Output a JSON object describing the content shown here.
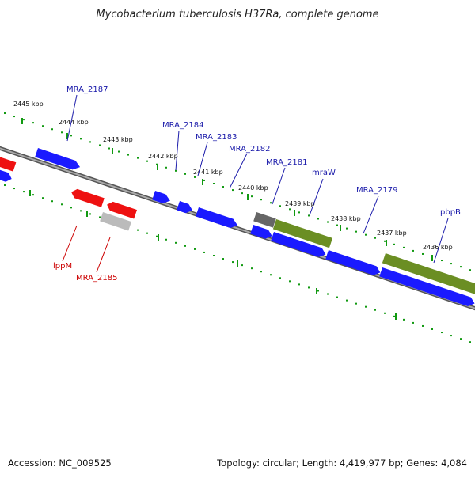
{
  "title": "Mycobacterium tuberculosis H37Ra, complete genome",
  "footer": {
    "accession": "Accession: NC_009525",
    "summary": "Topology: circular; Length: 4,419,977 bp; Genes: 4,084"
  },
  "colors": {
    "forward": "#1a1aff",
    "reverse": "#ee1111",
    "rna": "#6b8e23",
    "pseudo": "#bbbbbb",
    "other": "#666666",
    "ruler": "#119911",
    "forward_label": "#1a1aaa",
    "reverse_label": "#cc0000"
  },
  "ticks": [
    {
      "label": "2445 kbp",
      "kbp": 2445
    },
    {
      "label": "2444 kbp",
      "kbp": 2444
    },
    {
      "label": "2443 kbp",
      "kbp": 2443
    },
    {
      "label": "2442 kbp",
      "kbp": 2442
    },
    {
      "label": "2441 kbp",
      "kbp": 2441
    },
    {
      "label": "2440 kbp",
      "kbp": 2440
    },
    {
      "label": "2439 kbp",
      "kbp": 2439
    },
    {
      "label": "2438 kbp",
      "kbp": 2438
    },
    {
      "label": "2437 kbp",
      "kbp": 2437
    },
    {
      "label": "2436 kbp",
      "kbp": 2436
    }
  ],
  "gene_labels": [
    {
      "name": "MRA_2187",
      "strand": "forward"
    },
    {
      "name": "MRA_2184",
      "strand": "forward"
    },
    {
      "name": "MRA_2183",
      "strand": "forward"
    },
    {
      "name": "MRA_2182",
      "strand": "forward"
    },
    {
      "name": "MRA_2181",
      "strand": "forward"
    },
    {
      "name": "mraW",
      "strand": "forward"
    },
    {
      "name": "MRA_2179",
      "strand": "forward"
    },
    {
      "name": "pbpB",
      "strand": "forward"
    },
    {
      "name": "lppM",
      "strand": "reverse"
    },
    {
      "name": "MRA_2185",
      "strand": "reverse"
    }
  ]
}
